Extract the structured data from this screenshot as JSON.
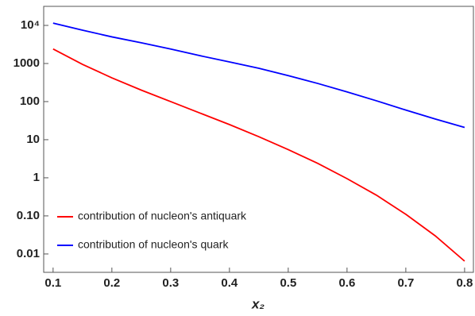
{
  "chart_data": {
    "type": "line",
    "x_label": "x₂",
    "x": [
      0.1,
      0.15,
      0.2,
      0.25,
      0.3,
      0.35,
      0.4,
      0.45,
      0.5,
      0.55,
      0.6,
      0.65,
      0.7,
      0.75,
      0.8
    ],
    "series": [
      {
        "name": "contribution of nucleon's antiquark",
        "color": "#ff0000",
        "values": [
          2400,
          950,
          420,
          200,
          100,
          50,
          25,
          12,
          5.5,
          2.4,
          0.95,
          0.35,
          0.11,
          0.03,
          0.0065
        ]
      },
      {
        "name": "contribution of nucleon's quark",
        "color": "#0000ff",
        "values": [
          11500,
          7500,
          5000,
          3500,
          2400,
          1600,
          1100,
          750,
          480,
          300,
          180,
          105,
          60,
          35,
          21
        ]
      }
    ],
    "xlim": [
      0.084,
      0.815
    ],
    "xticks": [
      0.1,
      0.2,
      0.3,
      0.4,
      0.5,
      0.6,
      0.7,
      0.8
    ],
    "ylim": [
      0.0033,
      31623
    ],
    "ylog": true,
    "yticks": [
      0.01,
      {
        "value": 0.1,
        "label": "0.10"
      },
      1,
      10,
      100,
      1000,
      {
        "value": 10000,
        "label": "10⁴"
      }
    ],
    "legend": "lower left"
  }
}
